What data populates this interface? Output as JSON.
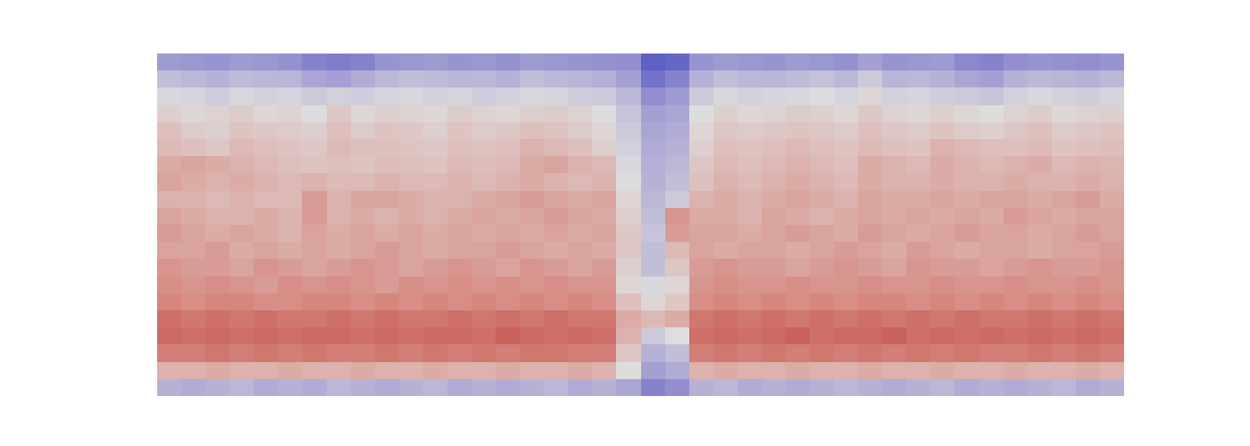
{
  "chart_data": {
    "type": "heatmap",
    "tick_labels": false,
    "zlim": [
      0,
      100
    ],
    "cells": [
      [
        28,
        27,
        26,
        28,
        27,
        25,
        20,
        18,
        20,
        26,
        27,
        28,
        26,
        27,
        25,
        28,
        27,
        26,
        25,
        24,
        8,
        10,
        26,
        28,
        27,
        26,
        28,
        27,
        25,
        30,
        26,
        27,
        28,
        22,
        20,
        24,
        26,
        25,
        24,
        26
      ],
      [
        40,
        38,
        36,
        39,
        38,
        37,
        32,
        30,
        34,
        38,
        40,
        39,
        37,
        38,
        36,
        40,
        38,
        37,
        35,
        30,
        14,
        20,
        36,
        40,
        38,
        37,
        39,
        41,
        38,
        44,
        37,
        38,
        36,
        32,
        30,
        36,
        38,
        37,
        36,
        38
      ],
      [
        48,
        47,
        45,
        48,
        46,
        47,
        44,
        46,
        45,
        47,
        48,
        46,
        47,
        45,
        46,
        48,
        47,
        45,
        44,
        38,
        24,
        28,
        44,
        48,
        46,
        47,
        48,
        50,
        47,
        52,
        46,
        47,
        45,
        44,
        42,
        46,
        48,
        46,
        45,
        47
      ],
      [
        54,
        52,
        53,
        55,
        52,
        53,
        50,
        56,
        52,
        54,
        53,
        52,
        55,
        53,
        52,
        54,
        55,
        53,
        50,
        42,
        30,
        32,
        50,
        54,
        52,
        53,
        55,
        54,
        52,
        56,
        53,
        52,
        54,
        52,
        50,
        53,
        55,
        52,
        53,
        54
      ],
      [
        58,
        55,
        54,
        57,
        56,
        55,
        54,
        58,
        55,
        57,
        56,
        54,
        57,
        55,
        56,
        58,
        57,
        55,
        52,
        44,
        32,
        34,
        52,
        56,
        55,
        56,
        57,
        56,
        55,
        58,
        56,
        55,
        57,
        55,
        54,
        56,
        58,
        55,
        56,
        57
      ],
      [
        60,
        58,
        56,
        60,
        58,
        57,
        56,
        60,
        58,
        58,
        57,
        56,
        58,
        57,
        58,
        62,
        60,
        58,
        54,
        46,
        34,
        36,
        54,
        58,
        57,
        58,
        60,
        58,
        57,
        60,
        58,
        57,
        62,
        60,
        58,
        58,
        60,
        57,
        58,
        59
      ],
      [
        64,
        66,
        64,
        62,
        60,
        58,
        57,
        58,
        57,
        59,
        58,
        57,
        60,
        59,
        60,
        64,
        66,
        62,
        60,
        48,
        35,
        38,
        56,
        60,
        58,
        60,
        62,
        60,
        58,
        64,
        62,
        60,
        64,
        62,
        60,
        62,
        64,
        60,
        62,
        61
      ],
      [
        66,
        64,
        62,
        64,
        62,
        60,
        62,
        60,
        60,
        62,
        60,
        60,
        62,
        60,
        62,
        64,
        62,
        60,
        62,
        50,
        36,
        40,
        58,
        62,
        60,
        62,
        64,
        62,
        60,
        64,
        62,
        62,
        64,
        62,
        62,
        64,
        62,
        62,
        64,
        62
      ],
      [
        62,
        62,
        60,
        62,
        60,
        60,
        68,
        62,
        66,
        66,
        64,
        62,
        62,
        64,
        66,
        68,
        66,
        64,
        66,
        52,
        38,
        44,
        62,
        64,
        62,
        64,
        66,
        64,
        62,
        66,
        64,
        64,
        66,
        64,
        66,
        66,
        64,
        66,
        68,
        64
      ],
      [
        66,
        64,
        62,
        62,
        64,
        62,
        68,
        62,
        64,
        62,
        64,
        62,
        64,
        66,
        64,
        66,
        68,
        66,
        64,
        54,
        40,
        70,
        64,
        64,
        62,
        66,
        64,
        62,
        64,
        66,
        64,
        66,
        64,
        66,
        64,
        68,
        66,
        64,
        66,
        66
      ],
      [
        68,
        66,
        64,
        66,
        64,
        62,
        66,
        64,
        66,
        64,
        66,
        64,
        66,
        64,
        66,
        64,
        66,
        64,
        66,
        56,
        42,
        68,
        66,
        66,
        64,
        66,
        68,
        66,
        64,
        68,
        66,
        64,
        66,
        68,
        66,
        66,
        64,
        66,
        68,
        66
      ],
      [
        66,
        66,
        68,
        64,
        66,
        64,
        66,
        64,
        66,
        68,
        66,
        64,
        66,
        66,
        68,
        66,
        64,
        66,
        64,
        56,
        40,
        60,
        66,
        64,
        66,
        66,
        64,
        66,
        68,
        66,
        64,
        68,
        66,
        64,
        66,
        66,
        64,
        66,
        66,
        68
      ],
      [
        70,
        68,
        68,
        66,
        70,
        68,
        66,
        68,
        70,
        68,
        66,
        68,
        70,
        68,
        66,
        70,
        68,
        66,
        68,
        54,
        40,
        56,
        68,
        70,
        68,
        68,
        66,
        68,
        70,
        68,
        66,
        70,
        68,
        68,
        66,
        68,
        70,
        68,
        68,
        70
      ],
      [
        72,
        70,
        72,
        70,
        68,
        72,
        70,
        72,
        70,
        68,
        72,
        70,
        72,
        70,
        72,
        70,
        72,
        70,
        70,
        52,
        48,
        52,
        70,
        72,
        70,
        70,
        72,
        70,
        70,
        72,
        70,
        70,
        72,
        70,
        70,
        72,
        70,
        70,
        72,
        70
      ],
      [
        74,
        72,
        74,
        74,
        72,
        72,
        74,
        74,
        72,
        74,
        72,
        74,
        72,
        74,
        72,
        74,
        72,
        74,
        72,
        58,
        52,
        56,
        72,
        74,
        72,
        74,
        72,
        74,
        72,
        74,
        74,
        72,
        74,
        72,
        74,
        72,
        74,
        72,
        74,
        72
      ],
      [
        80,
        78,
        80,
        78,
        80,
        78,
        78,
        80,
        78,
        80,
        78,
        78,
        80,
        78,
        80,
        78,
        80,
        78,
        78,
        64,
        60,
        64,
        78,
        80,
        78,
        80,
        78,
        80,
        78,
        80,
        78,
        80,
        78,
        80,
        78,
        78,
        80,
        78,
        80,
        78
      ],
      [
        82,
        80,
        82,
        80,
        82,
        80,
        82,
        82,
        80,
        82,
        80,
        82,
        82,
        80,
        84,
        82,
        80,
        82,
        80,
        62,
        44,
        50,
        80,
        82,
        80,
        82,
        84,
        80,
        82,
        82,
        84,
        80,
        82,
        80,
        82,
        80,
        82,
        80,
        82,
        80
      ],
      [
        76,
        76,
        78,
        76,
        78,
        76,
        78,
        76,
        76,
        78,
        76,
        78,
        76,
        78,
        76,
        78,
        78,
        76,
        76,
        56,
        36,
        40,
        76,
        78,
        76,
        78,
        76,
        78,
        76,
        78,
        76,
        78,
        76,
        78,
        76,
        76,
        78,
        76,
        78,
        76
      ],
      [
        62,
        62,
        64,
        62,
        62,
        64,
        62,
        62,
        64,
        62,
        62,
        64,
        62,
        62,
        64,
        62,
        62,
        64,
        62,
        50,
        30,
        34,
        62,
        64,
        62,
        62,
        64,
        62,
        62,
        64,
        62,
        62,
        64,
        62,
        62,
        64,
        62,
        62,
        64,
        62
      ],
      [
        36,
        34,
        36,
        38,
        34,
        36,
        34,
        38,
        36,
        34,
        36,
        38,
        34,
        36,
        34,
        36,
        38,
        34,
        36,
        32,
        20,
        24,
        36,
        38,
        34,
        36,
        34,
        36,
        38,
        36,
        34,
        36,
        38,
        34,
        36,
        34,
        36,
        38,
        34,
        36
      ]
    ]
  }
}
